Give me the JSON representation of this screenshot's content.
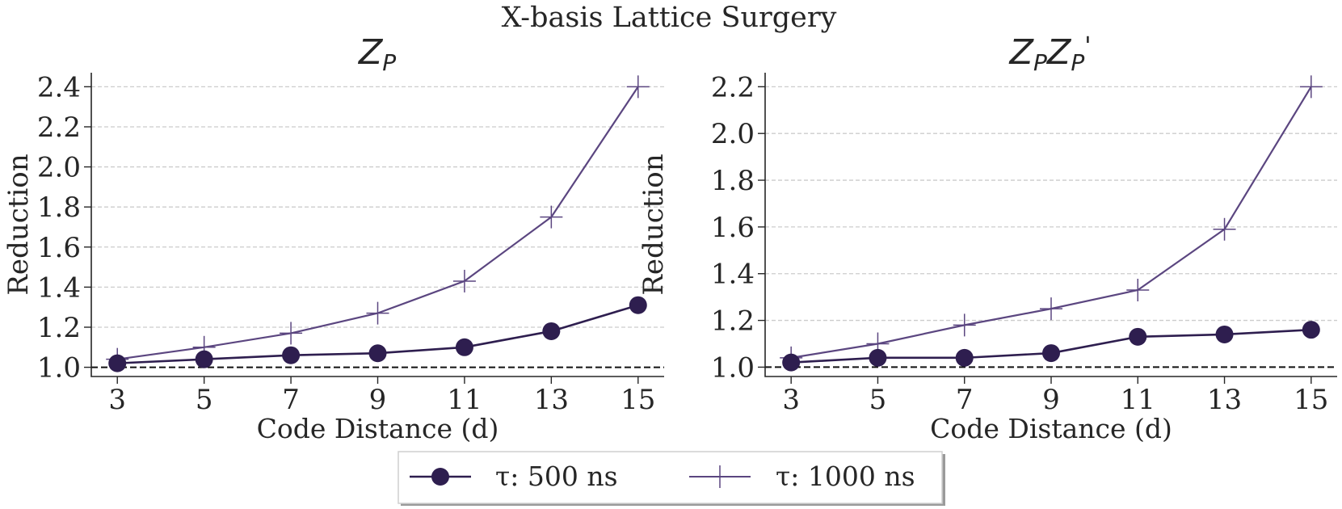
{
  "chart_data": {
    "suptitle": "X-basis Lattice Surgery",
    "legend": {
      "placement": "bottom-center",
      "entries": [
        {
          "label": "τ: 500 ns",
          "marker": "circle",
          "color": "#2e1e4f"
        },
        {
          "label": "τ: 1000 ns",
          "marker": "plus",
          "color": "#5b4680"
        }
      ]
    },
    "panels": [
      {
        "type": "line",
        "title_main": "Z",
        "title_sub": "P",
        "title_suffix": "",
        "xlabel": "Code Distance (d)",
        "ylabel": "Reduction",
        "x": [
          3,
          5,
          7,
          9,
          11,
          13,
          15
        ],
        "xticks": [
          "3",
          "5",
          "7",
          "9",
          "11",
          "13",
          "15"
        ],
        "yticks": [
          "1.0",
          "1.2",
          "1.4",
          "1.6",
          "1.8",
          "2.0",
          "2.2",
          "2.4"
        ],
        "ytick_values": [
          1.0,
          1.2,
          1.4,
          1.6,
          1.8,
          2.0,
          2.2,
          2.4
        ],
        "xlim": [
          2.4,
          15.6
        ],
        "ylim": [
          0.954,
          2.47
        ],
        "grid": "y-dashed",
        "reference_line": 1.0,
        "series": [
          {
            "name": "τ: 500 ns",
            "values": [
              1.02,
              1.04,
              1.06,
              1.07,
              1.1,
              1.18,
              1.31
            ]
          },
          {
            "name": "τ: 1000 ns",
            "values": [
              1.04,
              1.1,
              1.17,
              1.27,
              1.43,
              1.75,
              2.4
            ]
          }
        ]
      },
      {
        "type": "line",
        "title_main": "Z",
        "title_sub": "P",
        "title_suffix": "'",
        "xlabel": "Code Distance (d)",
        "ylabel": "Reduction",
        "x": [
          3,
          5,
          7,
          9,
          11,
          13,
          15
        ],
        "xticks": [
          "3",
          "5",
          "7",
          "9",
          "11",
          "13",
          "15"
        ],
        "yticks": [
          "1.0",
          "1.2",
          "1.4",
          "1.6",
          "1.8",
          "2.0",
          "2.2"
        ],
        "ytick_values": [
          1.0,
          1.2,
          1.4,
          1.6,
          1.8,
          2.0,
          2.2
        ],
        "xlim": [
          2.4,
          15.6
        ],
        "ylim": [
          0.96,
          2.26
        ],
        "grid": "y-dashed",
        "reference_line": 1.0,
        "series": [
          {
            "name": "τ: 500 ns",
            "values": [
              1.02,
              1.04,
              1.04,
              1.06,
              1.13,
              1.14,
              1.16
            ]
          },
          {
            "name": "τ: 1000 ns",
            "values": [
              1.04,
              1.1,
              1.18,
              1.25,
              1.33,
              1.59,
              2.2
            ]
          }
        ]
      }
    ]
  }
}
